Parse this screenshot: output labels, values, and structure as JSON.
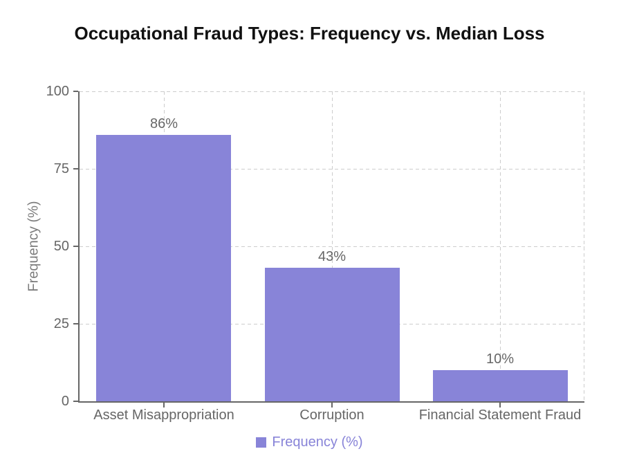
{
  "chart_data": {
    "type": "bar",
    "title": "Occupational Fraud Types: Frequency vs. Median Loss",
    "xlabel": "",
    "ylabel": "Frequency (%)",
    "categories": [
      "Asset Misappropriation",
      "Corruption",
      "Financial Statement Fraud"
    ],
    "series": [
      {
        "name": "Frequency (%)",
        "values": [
          86,
          43,
          10
        ],
        "color": "#8884d8"
      }
    ],
    "data_labels": [
      "86%",
      "43%",
      "10%"
    ],
    "ylim": [
      0,
      100
    ],
    "yticks": [
      0,
      25,
      50,
      75,
      100
    ],
    "ytick_labels": [
      "0",
      "25",
      "50",
      "75",
      "100"
    ],
    "grid": "dashed",
    "legend_position": "bottom",
    "legend_entries": [
      "Frequency (%)"
    ],
    "colors": {
      "bar": "#8884d8",
      "legend_text": "#8884d8",
      "axis_line": "#666666",
      "tick_label": "#666666",
      "data_label": "#666666",
      "gridline": "#cccccc",
      "title": "#111111"
    }
  }
}
